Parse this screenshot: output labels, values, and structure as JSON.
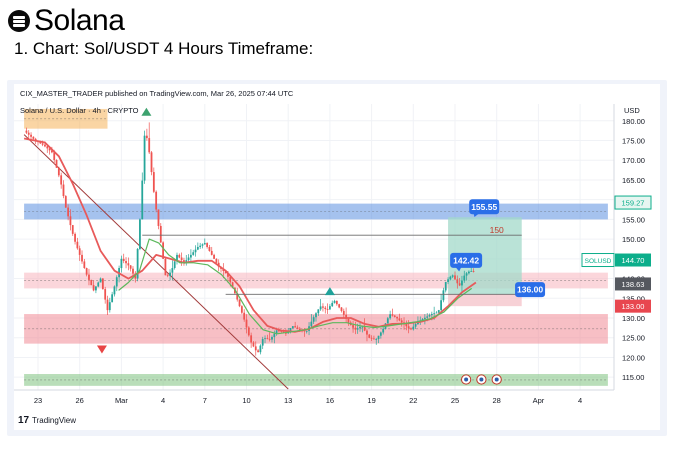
{
  "header": {
    "title": "Solana",
    "subtitle": "1. Chart: Sol/USDT 4 Hours Timeframe:"
  },
  "chart_data": {
    "type": "candlestick",
    "publisher_line": "CIX_MASTER_TRADER published on TradingView.com, Mar 26, 2025 07:44 UTC",
    "symbol_line": "Solana / U.S. Dollar · 4h · CRYPTO",
    "currency": "USD",
    "branding": "TradingView",
    "ylim": [
      112,
      184
    ],
    "y_ticks": [
      180,
      175,
      170,
      165,
      160,
      155,
      150,
      145,
      140,
      135,
      130,
      125,
      120,
      115
    ],
    "y_tick_labels": [
      "180.00",
      "175.00",
      "170.00",
      "165.00",
      "160.00",
      "155.00",
      "150.00",
      "145.00",
      "140.00",
      "135.00",
      "130.00",
      "125.00",
      "120.00",
      "115.00"
    ],
    "x_ticks": [
      {
        "day": 0,
        "label": "23"
      },
      {
        "day": 3,
        "label": "26"
      },
      {
        "day": 6,
        "label": "Mar"
      },
      {
        "day": 9,
        "label": "4"
      },
      {
        "day": 12,
        "label": "7"
      },
      {
        "day": 15,
        "label": "10"
      },
      {
        "day": 18,
        "label": "13"
      },
      {
        "day": 21,
        "label": "16"
      },
      {
        "day": 24,
        "label": "19"
      },
      {
        "day": 27,
        "label": "22"
      },
      {
        "day": 30,
        "label": "25"
      },
      {
        "day": 33,
        "label": "28"
      },
      {
        "day": 36,
        "label": "Apr"
      },
      {
        "day": 39,
        "label": "4"
      }
    ],
    "price_path": [
      [
        -1.0,
        177.5
      ],
      [
        -0.2,
        175.0
      ],
      [
        0.4,
        173.8
      ],
      [
        1.0,
        172.0
      ],
      [
        1.6,
        165.0
      ],
      [
        2.0,
        158.0
      ],
      [
        2.6,
        150.0
      ],
      [
        3.0,
        146.0
      ],
      [
        3.5,
        141.0
      ],
      [
        4.0,
        137.0
      ],
      [
        4.5,
        140.0
      ],
      [
        5.0,
        132.0
      ],
      [
        5.5,
        138.0
      ],
      [
        6.0,
        145.0
      ],
      [
        6.6,
        143.0
      ],
      [
        7.0,
        140.0
      ],
      [
        7.4,
        158.0
      ],
      [
        7.7,
        178.5
      ],
      [
        8.0,
        172.0
      ],
      [
        8.4,
        160.0
      ],
      [
        8.8,
        150.0
      ],
      [
        9.2,
        140.0
      ],
      [
        9.6,
        142.0
      ],
      [
        10.0,
        146.0
      ],
      [
        10.5,
        144.0
      ],
      [
        11.0,
        146.0
      ],
      [
        11.5,
        148.0
      ],
      [
        12.0,
        149.0
      ],
      [
        12.5,
        146.0
      ],
      [
        13.0,
        143.0
      ],
      [
        13.6,
        141.0
      ],
      [
        14.2,
        136.0
      ],
      [
        14.8,
        130.0
      ],
      [
        15.3,
        124.0
      ],
      [
        15.8,
        121.0
      ],
      [
        16.2,
        125.0
      ],
      [
        16.7,
        124.5
      ],
      [
        17.2,
        127.0
      ],
      [
        17.8,
        126.0
      ],
      [
        18.3,
        128.0
      ],
      [
        18.8,
        127.0
      ],
      [
        19.3,
        126.5
      ],
      [
        19.8,
        130.0
      ],
      [
        20.3,
        133.0
      ],
      [
        20.8,
        132.0
      ],
      [
        21.3,
        134.5
      ],
      [
        21.8,
        132.0
      ],
      [
        22.3,
        129.0
      ],
      [
        22.8,
        127.0
      ],
      [
        23.3,
        128.0
      ],
      [
        23.8,
        125.0
      ],
      [
        24.3,
        124.5
      ],
      [
        24.8,
        127.0
      ],
      [
        25.3,
        131.0
      ],
      [
        25.8,
        130.0
      ],
      [
        26.3,
        128.5
      ],
      [
        26.8,
        127.0
      ],
      [
        27.3,
        129.0
      ],
      [
        27.8,
        130.0
      ],
      [
        28.3,
        131.0
      ],
      [
        28.8,
        131.5
      ],
      [
        29.3,
        139.0
      ],
      [
        29.8,
        141.0
      ],
      [
        30.3,
        138.0
      ],
      [
        30.7,
        141.0
      ],
      [
        31.1,
        142.0
      ],
      [
        31.5,
        141.5
      ]
    ],
    "ema_path": [
      [
        -1.0,
        175.5
      ],
      [
        0.5,
        174.5
      ],
      [
        1.5,
        171.0
      ],
      [
        2.5,
        164.0
      ],
      [
        3.5,
        156.0
      ],
      [
        4.5,
        147.0
      ],
      [
        5.5,
        142.0
      ],
      [
        6.5,
        140.0
      ],
      [
        7.5,
        142.0
      ],
      [
        8.5,
        146.0
      ],
      [
        9.5,
        145.0
      ],
      [
        10.5,
        144.0
      ],
      [
        11.5,
        144.5
      ],
      [
        12.5,
        144.5
      ],
      [
        13.5,
        142.0
      ],
      [
        14.5,
        138.0
      ],
      [
        15.5,
        132.0
      ],
      [
        16.5,
        128.0
      ],
      [
        17.5,
        126.8
      ],
      [
        18.5,
        126.5
      ],
      [
        19.5,
        127.2
      ],
      [
        20.5,
        129.0
      ],
      [
        21.5,
        130.0
      ],
      [
        22.5,
        130.0
      ],
      [
        23.5,
        128.5
      ],
      [
        24.5,
        127.8
      ],
      [
        25.5,
        128.5
      ],
      [
        26.5,
        128.6
      ],
      [
        27.5,
        129.0
      ],
      [
        28.5,
        130.0
      ],
      [
        29.5,
        133.0
      ],
      [
        30.5,
        136.5
      ],
      [
        31.5,
        139.0
      ]
    ],
    "sma_path": [
      [
        5.8,
        137.0
      ],
      [
        6.5,
        139.0
      ],
      [
        7.3,
        142.0
      ],
      [
        8.0,
        150.0
      ],
      [
        8.7,
        149.0
      ],
      [
        9.4,
        146.0
      ],
      [
        10.2,
        144.0
      ],
      [
        11.2,
        144.0
      ],
      [
        12.2,
        143.5
      ],
      [
        13.2,
        141.0
      ],
      [
        14.2,
        137.0
      ],
      [
        15.2,
        131.0
      ],
      [
        16.2,
        127.0
      ],
      [
        17.2,
        126.0
      ],
      [
        18.2,
        126.5
      ],
      [
        19.2,
        127.0
      ],
      [
        20.2,
        128.0
      ],
      [
        21.2,
        128.8
      ],
      [
        22.2,
        128.8
      ],
      [
        23.2,
        128.0
      ],
      [
        24.2,
        127.6
      ],
      [
        25.2,
        128.0
      ],
      [
        26.2,
        128.5
      ],
      [
        27.2,
        129.0
      ],
      [
        28.2,
        129.8
      ],
      [
        29.2,
        131.5
      ],
      [
        30.2,
        135.0
      ],
      [
        31.2,
        137.5
      ]
    ],
    "zones": [
      {
        "y0": 178.0,
        "y1": 183.0,
        "x0": -1.0,
        "x1": 5.0,
        "color": "#f5b259"
      },
      {
        "y0": 155.0,
        "y1": 159.0,
        "x0": -1.0,
        "x1": 41.0,
        "color": "#5b8fe0"
      },
      {
        "y0": 137.5,
        "y1": 141.5,
        "x0": -1.0,
        "x1": 41.0,
        "color": "#f7b4bd"
      },
      {
        "y0": 123.5,
        "y1": 131.0,
        "x0": -1.0,
        "x1": 41.0,
        "color": "#f08a96"
      },
      {
        "y0": 112.8,
        "y1": 115.8,
        "x0": -1.0,
        "x1": 41.0,
        "color": "#7fc27f"
      }
    ],
    "position": {
      "x0": 29.5,
      "x1": 34.8,
      "entry": 136.0,
      "target": 155.55,
      "stop": 133.0
    },
    "h_lines": [
      {
        "y": 151.0,
        "x0": 7.5,
        "x1": 34.8
      },
      {
        "y": 136.0,
        "x0": 13.5,
        "x1": 34.8
      }
    ],
    "trendline": {
      "from": [
        -1.0,
        176.5
      ],
      "to": [
        18.0,
        112.0
      ]
    },
    "labels": {
      "target": "155.55",
      "mid_level": "150",
      "current": "142.42",
      "entry": "136.00"
    },
    "price_tags": [
      {
        "y": 159.27,
        "text": "159.27",
        "color": "#0cae8b",
        "style": "light"
      },
      {
        "y": 144.7,
        "text": "144.70",
        "color": "#0cae8b",
        "style": "dark",
        "symbol": "SOLUSD"
      },
      {
        "y": 138.63,
        "text": "138.63",
        "color": "#55585f",
        "style": "grey"
      },
      {
        "y": 133.0,
        "text": "133.00",
        "color": "#e8474f",
        "style": "dark"
      }
    ],
    "markers": [
      {
        "type": "up",
        "x": 7.8,
        "y": 182.3,
        "color": "#3da26e"
      },
      {
        "type": "down",
        "x": 4.6,
        "y": 122.0,
        "color": "#e84545"
      },
      {
        "type": "up",
        "x": 21.0,
        "y": 136.8,
        "color": "#1fa29a"
      }
    ],
    "events": [
      {
        "x": 30.8,
        "y": 114.4
      },
      {
        "x": 31.9,
        "y": 114.4
      },
      {
        "x": 33.0,
        "y": 114.4
      }
    ],
    "colors": {
      "up": "#26a69a",
      "down": "#ef5350",
      "ema": "#e85a5a",
      "sma": "#5cb85c",
      "trendline": "#a23b3b",
      "target_fill": "#a3dac9",
      "stop_fill": "#f5c6cc",
      "callout": "#2a6ee8"
    }
  }
}
